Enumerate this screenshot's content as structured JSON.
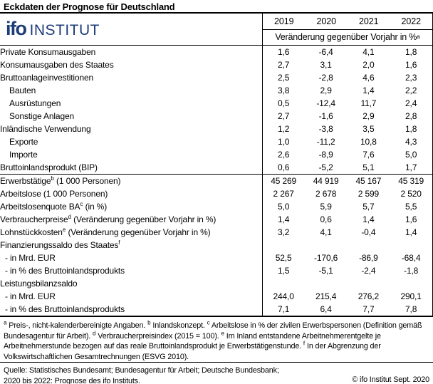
{
  "title": "Eckdaten der Prognose für Deutschland",
  "logo": {
    "name": "ifo",
    "suffix": "INSTITUT",
    "color": "#1d3c78"
  },
  "table": {
    "years": [
      "2019",
      "2020",
      "2021",
      "2022"
    ],
    "subheader": "Veränderung gegenüber Vorjahr in %",
    "subheader_sup": "a",
    "rows": [
      {
        "label": "Private Konsumausgaben",
        "values": [
          "1,6",
          "-6,4",
          "4,1",
          "1,8"
        ]
      },
      {
        "label": "Konsumausgaben des Staates",
        "values": [
          "2,7",
          "3,1",
          "2,0",
          "1,6"
        ]
      },
      {
        "label": "Bruttoanlageinvestitionen",
        "values": [
          "2,5",
          "-2,8",
          "4,6",
          "2,3"
        ]
      },
      {
        "label": "Bauten",
        "indent": true,
        "values": [
          "3,8",
          "2,9",
          "1,4",
          "2,2"
        ]
      },
      {
        "label": "Ausrüstungen",
        "indent": true,
        "values": [
          "0,5",
          "-12,4",
          "11,7",
          "2,4"
        ]
      },
      {
        "label": "Sonstige Anlagen",
        "indent": true,
        "values": [
          "2,7",
          "-1,6",
          "2,9",
          "2,8"
        ]
      },
      {
        "label": "Inländische Verwendung",
        "values": [
          "1,2",
          "-3,8",
          "3,5",
          "1,8"
        ]
      },
      {
        "label": "Exporte",
        "indent": true,
        "values": [
          "1,0",
          "-11,2",
          "10,8",
          "4,3"
        ]
      },
      {
        "label": "Importe",
        "indent": true,
        "values": [
          "2,6",
          "-8,9",
          "7,6",
          "5,0"
        ]
      },
      {
        "label": "Bruttoinlandsprodukt (BIP)",
        "values": [
          "0,6",
          "-5,2",
          "5,1",
          "1,7"
        ]
      },
      {
        "label": "Erwerbstätige",
        "sup": "b",
        "label2": " (1 000 Personen)",
        "rule_above": true,
        "values": [
          "45 269",
          "44 919",
          "45 167",
          "45 319"
        ]
      },
      {
        "label": "Arbeitslose (1 000 Personen)",
        "values": [
          "2 267",
          "2 678",
          "2 599",
          "2 520"
        ]
      },
      {
        "label": "Arbeitslosenquote BA",
        "sup": "c",
        "label2": " (in %)",
        "values": [
          "5,0",
          "5,9",
          "5,7",
          "5,5"
        ]
      },
      {
        "label": "Verbraucherpreise",
        "sup": "d",
        "label2": " (Veränderung gegenüber Vorjahr in %)",
        "values": [
          "1,4",
          "0,6",
          "1,4",
          "1,6"
        ]
      },
      {
        "label": "Lohnstückkosten",
        "sup": "e",
        "label2": " (Veränderung gegenüber Vorjahr in %)",
        "values": [
          "3,2",
          "4,1",
          "-0,4",
          "1,4"
        ]
      },
      {
        "label": "Finanzierungssaldo des Staates",
        "sup": "f",
        "values": [
          "",
          "",
          "",
          ""
        ]
      },
      {
        "label": "- in Mrd. EUR",
        "dash": true,
        "values": [
          "52,5",
          "-170,6",
          "-86,9",
          "-68,4"
        ]
      },
      {
        "label": "- in % des Bruttoinlandsprodukts",
        "dash": true,
        "values": [
          "1,5",
          "-5,1",
          "-2,4",
          "-1,8"
        ]
      },
      {
        "label": "Leistungsbilanzsaldo",
        "values": [
          "",
          "",
          "",
          ""
        ]
      },
      {
        "label": "- in Mrd. EUR",
        "dash": true,
        "values": [
          "244,0",
          "215,4",
          "276,2",
          "290,1"
        ]
      },
      {
        "label": "- in % des Bruttoinlandsprodukts",
        "dash": true,
        "values": [
          "7,1",
          "6,4",
          "7,7",
          "7,8"
        ]
      }
    ]
  },
  "footnotes": [
    {
      "sup": "a",
      "text": "Preis-, nicht-kalenderbereinigte Angaben."
    },
    {
      "sup": "b",
      "text": "Inlandskonzept."
    },
    {
      "sup": "c",
      "text": "Arbeitslose in % der zivilen Erwerbspersonen (Definition gemäß Bundesagentur für Arbeit)."
    },
    {
      "sup": "d",
      "text": "Verbraucherpreisindex (2015 = 100)."
    },
    {
      "sup": "e",
      "text": "Im Inland entstandene Arbeitnehmerentgelte je Arbeitnehmerstunde bezogen auf das reale Bruttoinlandsprodukt je Erwerbstätigenstunde."
    },
    {
      "sup": "f",
      "text": "In der Abgrenzung der Volkswirtschaftlichen Gesamtrechnungen (ESVG 2010)."
    }
  ],
  "source_line1": "Quelle: Statistisches Bundesamt; Bundesagentur für Arbeit; Deutsche Bundesbank;",
  "source_line2": "2020 bis 2022: Prognose des ifo Instituts.",
  "copyright": "© ifo Institut Sept. 2020"
}
